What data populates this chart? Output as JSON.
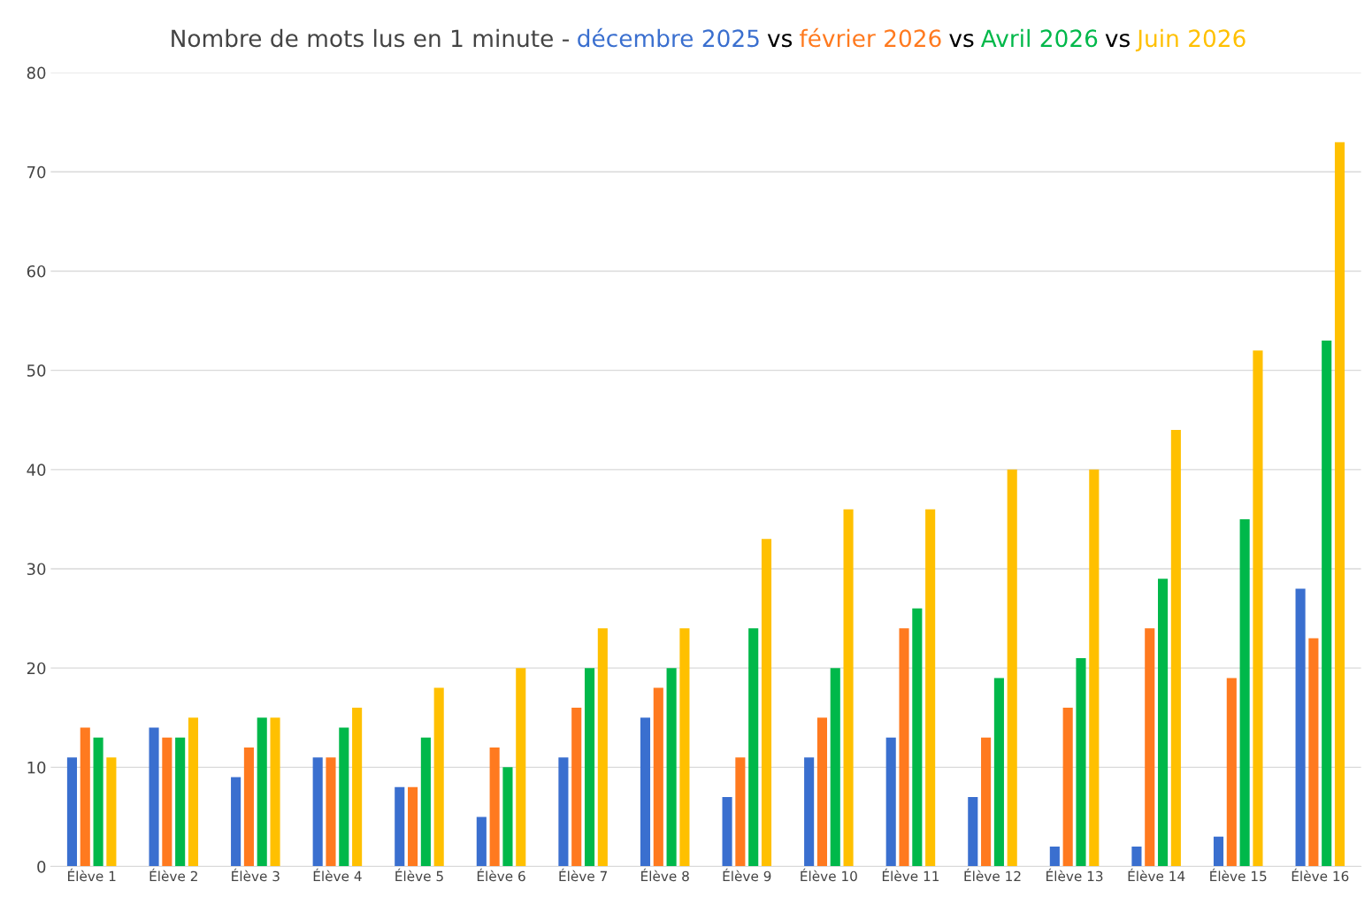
{
  "chart_data": {
    "type": "bar",
    "title": "Nombre de mots lus en 1 minute -",
    "annotations": [
      "vs"
    ],
    "categories": [
      "Élève 1",
      "Élève 2",
      "Élève 3",
      "Élève 4",
      "Élève 5",
      "Élève 6",
      "Élève 7",
      "Élève 8",
      "Élève 9",
      "Élève 10",
      "Élève 11",
      "Élève 12",
      "Élève 13",
      "Élève 14",
      "Élève 15",
      "Élève 16"
    ],
    "series": [
      {
        "name": "décembre 2025",
        "color": "#3a6fcf",
        "values": [
          11,
          14,
          9,
          11,
          8,
          5,
          11,
          15,
          7,
          11,
          13,
          7,
          2,
          2,
          3,
          28
        ]
      },
      {
        "name": "février 2026",
        "color": "#ff7a1f",
        "values": [
          14,
          13,
          12,
          11,
          8,
          12,
          16,
          18,
          11,
          15,
          24,
          13,
          16,
          24,
          19,
          23
        ]
      },
      {
        "name": "Avril 2026",
        "color": "#00b84a",
        "values": [
          13,
          13,
          15,
          14,
          13,
          10,
          20,
          20,
          24,
          20,
          26,
          19,
          21,
          29,
          35,
          53
        ]
      },
      {
        "name": "Juin 2026",
        "color": "#ffc000",
        "values": [
          11,
          15,
          15,
          16,
          18,
          20,
          24,
          24,
          33,
          36,
          36,
          40,
          40,
          44,
          52,
          73
        ]
      }
    ],
    "ylim": [
      0,
      80
    ],
    "yticks": [
      0,
      10,
      20,
      30,
      40,
      50,
      60,
      70,
      80
    ],
    "grid": "y",
    "legend": "top"
  }
}
